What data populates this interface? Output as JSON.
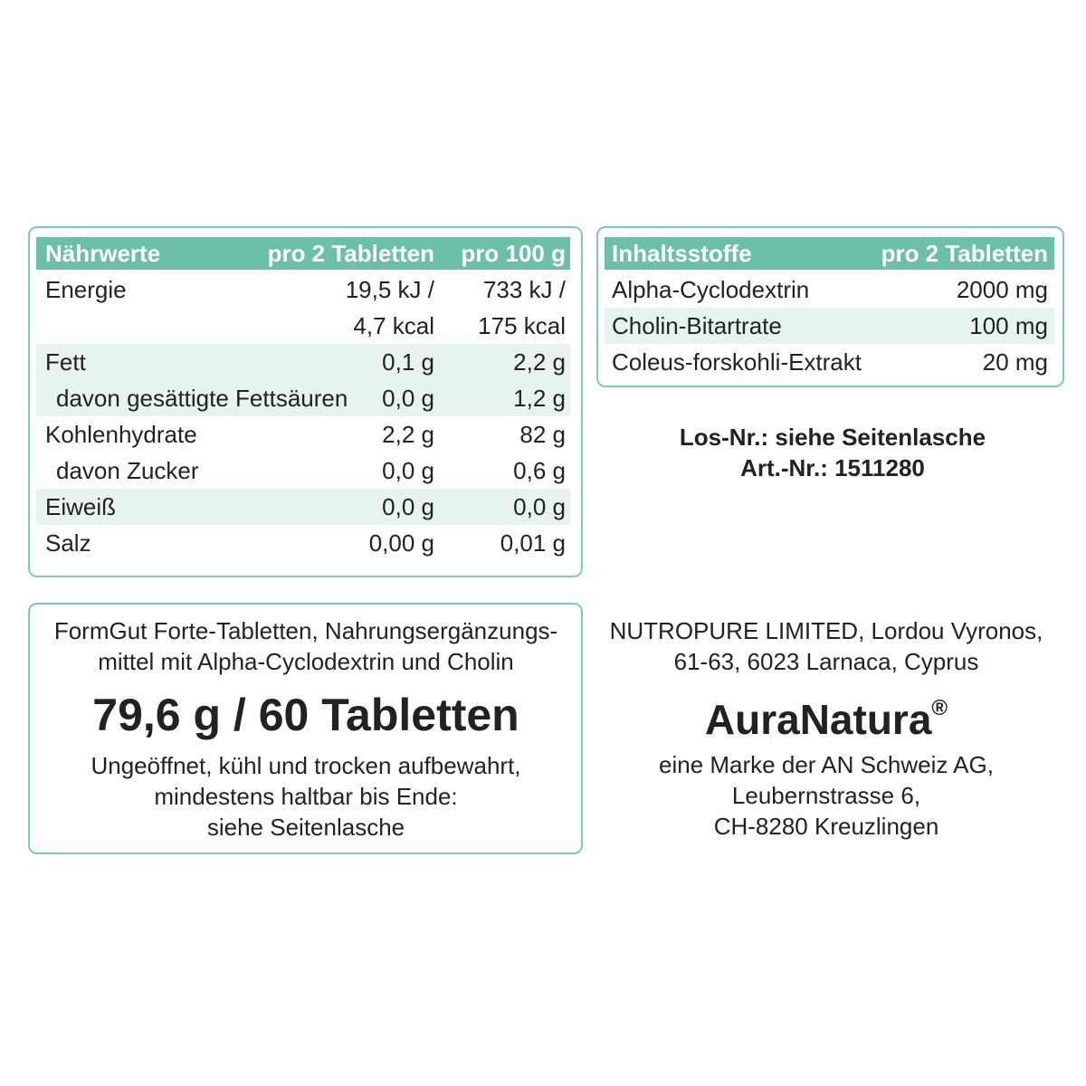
{
  "nutrition": {
    "header": [
      "Nährwerte",
      "pro 2 Tabletten",
      "pro 100 g"
    ],
    "rows": [
      {
        "label": "Energie",
        "per_serving": [
          "19,5 kJ /",
          "4,7 kcal"
        ],
        "per_100g": [
          "733 kJ /",
          "175 kcal"
        ]
      },
      {
        "label": "Fett",
        "per_serving": [
          "0,1 g"
        ],
        "per_100g": [
          "2,2 g"
        ]
      },
      {
        "label": "davon gesättigte Fettsäuren",
        "per_serving": [
          "0,0 g"
        ],
        "per_100g": [
          "1,2 g"
        ]
      },
      {
        "label": "Kohlenhydrate",
        "per_serving": [
          "2,2 g"
        ],
        "per_100g": [
          "82 g"
        ]
      },
      {
        "label": "davon Zucker",
        "per_serving": [
          "0,0 g"
        ],
        "per_100g": [
          "0,6 g"
        ]
      },
      {
        "label": "Eiweiß",
        "per_serving": [
          "0,0 g"
        ],
        "per_100g": [
          "0,0 g"
        ]
      },
      {
        "label": "Salz",
        "per_serving": [
          "0,00 g"
        ],
        "per_100g": [
          "0,01 g"
        ]
      }
    ]
  },
  "ingredients": {
    "header": [
      "Inhaltsstoffe",
      "pro 2 Tabletten"
    ],
    "rows": [
      [
        "Alpha-Cyclodextrin",
        "2000 mg"
      ],
      [
        "Cholin-Bitartrate",
        "100 mg"
      ],
      [
        "Coleus-forskohli-Extrakt",
        "20 mg"
      ]
    ]
  },
  "batch": [
    "Los-Nr.: siehe Seitenlasche",
    "Art.-Nr.: 1511280"
  ],
  "product": {
    "description": [
      "FormGut Forte-Tabletten, Nahrungsergänzungs-",
      "mittel mit Alpha-Cyclodextrin und Cholin"
    ],
    "quantity": "79,6 g / 60 Tabletten",
    "storage": [
      "Ungeöffnet, kühl und trocken aufbewahrt,",
      "mindestens haltbar bis Ende:",
      "siehe Seitenlasche"
    ]
  },
  "manufacturer": {
    "address": [
      "NUTROPURE LIMITED, Lordou Vyronos,",
      "61-63, 6023 Larnaca, Cyprus"
    ],
    "brand": "AuraNatura",
    "brand_mark": "®",
    "owner": [
      "eine Marke der AN Schweiz AG,",
      "Leubernstrasse 6,",
      "CH-8280 Kreuzlingen"
    ]
  }
}
